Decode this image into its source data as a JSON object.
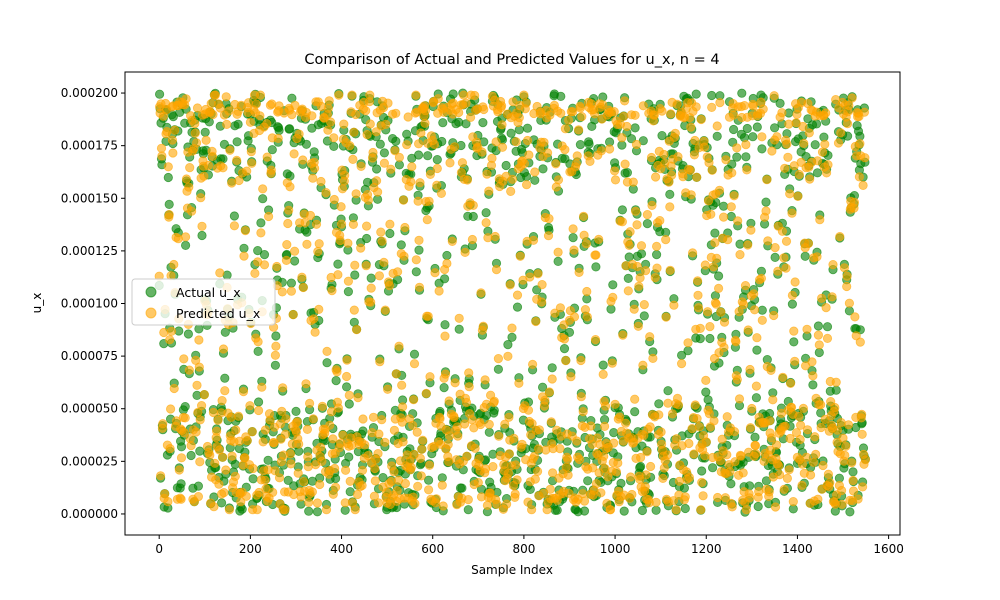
{
  "chart_data": {
    "type": "scatter",
    "title": "Comparison of Actual and Predicted Values for u_x, n = 4",
    "xlabel": "Sample Index",
    "ylabel": "u_x",
    "xlim": [
      -75,
      1625
    ],
    "ylim": [
      -1e-05,
      0.00021
    ],
    "x_ticks": [
      0,
      200,
      400,
      600,
      800,
      1000,
      1200,
      1400,
      1600
    ],
    "x_tick_labels": [
      "0",
      "200",
      "400",
      "600",
      "800",
      "1000",
      "1200",
      "1400",
      "1600"
    ],
    "y_ticks": [
      0,
      2.5e-05,
      5e-05,
      7.5e-05,
      0.0001,
      0.000125,
      0.00015,
      0.000175,
      0.0002
    ],
    "y_tick_labels": [
      "0.000000",
      "0.000025",
      "0.000050",
      "0.000075",
      "0.000100",
      "0.000125",
      "0.000150",
      "0.000175",
      "0.000200"
    ],
    "grid": false,
    "legend_position": "center-left",
    "n_samples": 1550,
    "value_range": [
      0,
      0.0002
    ],
    "series": [
      {
        "name": "Actual u_x",
        "color": "#008000",
        "opacity": 0.6,
        "marker": "circle"
      },
      {
        "name": "Predicted u_x",
        "color": "#ffa500",
        "opacity": 0.6,
        "marker": "circle"
      }
    ]
  }
}
